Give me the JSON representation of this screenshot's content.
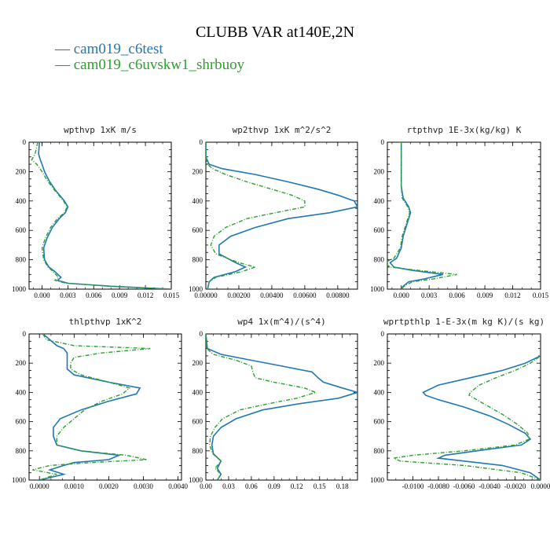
{
  "title": "CLUBB VAR at140E,2N",
  "legend": [
    {
      "label": "cam019_c6test",
      "color": "#1f77b4"
    },
    {
      "label": "cam019_c6uvskw1_shrbuoy",
      "color": "#2ca02c"
    }
  ],
  "chart_data": [
    {
      "type": "line",
      "title": "wpthvp  1xK m/s",
      "xlim": [
        -0.0015,
        0.015
      ],
      "ylim": [
        1000,
        0
      ],
      "xticks": [
        "0.000",
        "0.003",
        "0.006",
        "0.009",
        "0.012",
        "0.015"
      ],
      "xtick_values": [
        0,
        0.003,
        0.006,
        0.009,
        0.012,
        0.015
      ],
      "yticks": [
        "0",
        "200",
        "400",
        "600",
        "800",
        "1000"
      ],
      "ytick_values": [
        0,
        200,
        400,
        600,
        800,
        1000
      ],
      "series": [
        {
          "name": "cam019_c6test",
          "y": [
            0,
            80,
            120,
            150,
            200,
            260,
            330,
            400,
            440,
            480,
            520,
            580,
            650,
            720,
            800,
            850,
            880,
            920,
            940,
            960,
            980,
            1000
          ],
          "x": [
            -0.0003,
            -0.0004,
            -0.0002,
            0.0,
            0.0003,
            0.0008,
            0.0016,
            0.0026,
            0.003,
            0.0027,
            0.002,
            0.0012,
            0.0006,
            0.0002,
            0.0003,
            0.0008,
            0.0015,
            0.0022,
            0.0018,
            0.003,
            0.008,
            0.015
          ]
        },
        {
          "name": "cam019_c6uvskw1_shrbuoy",
          "y": [
            0,
            80,
            120,
            150,
            200,
            260,
            330,
            400,
            440,
            480,
            520,
            580,
            650,
            720,
            800,
            850,
            880,
            920,
            940,
            960,
            980,
            1000
          ],
          "x": [
            -0.0005,
            -0.0008,
            -0.0012,
            -0.0006,
            0.0,
            0.0006,
            0.0015,
            0.0025,
            0.0029,
            0.0026,
            0.0018,
            0.001,
            0.0004,
            0.0,
            0.0002,
            0.0007,
            0.0013,
            0.0019,
            0.0015,
            0.0028,
            0.008,
            0.015
          ]
        }
      ]
    },
    {
      "type": "line",
      "title": "wp2thvp  1xK m^2/s^2",
      "xlim": [
        0,
        0.0092
      ],
      "ylim": [
        1000,
        0
      ],
      "xticks": [
        "0.00000",
        "0.00200",
        "0.00400",
        "0.00600",
        "0.00800"
      ],
      "xtick_values": [
        0,
        0.002,
        0.004,
        0.006,
        0.008
      ],
      "yticks": [
        "0",
        "200",
        "400",
        "600",
        "800",
        "1000"
      ],
      "ytick_values": [
        0,
        200,
        400,
        600,
        800,
        1000
      ],
      "series": [
        {
          "name": "cam019_c6test",
          "y": [
            0,
            100,
            150,
            180,
            220,
            270,
            320,
            360,
            400,
            440,
            480,
            520,
            580,
            640,
            700,
            760,
            820,
            850,
            880,
            920,
            950,
            1000
          ],
          "x": [
            0.0,
            0.0,
            0.0002,
            0.001,
            0.003,
            0.005,
            0.0068,
            0.008,
            0.009,
            0.0092,
            0.0075,
            0.005,
            0.003,
            0.0015,
            0.0008,
            0.0008,
            0.0018,
            0.0024,
            0.0018,
            0.0005,
            0.0002,
            0.0001
          ]
        },
        {
          "name": "cam019_c6uvskw1_shrbuoy",
          "y": [
            0,
            100,
            150,
            180,
            220,
            270,
            320,
            360,
            400,
            440,
            480,
            520,
            580,
            640,
            700,
            760,
            820,
            850,
            880,
            920,
            950,
            1000
          ],
          "x": [
            0.0,
            0.0,
            0.0001,
            0.0004,
            0.0012,
            0.0025,
            0.004,
            0.0052,
            0.006,
            0.006,
            0.0042,
            0.0025,
            0.0012,
            0.0005,
            0.0003,
            0.0006,
            0.002,
            0.003,
            0.0022,
            0.0006,
            0.0002,
            0.0001
          ]
        }
      ]
    },
    {
      "type": "line",
      "title": "rtpthvp  1E-3x(kg/kg) K",
      "xlim": [
        -0.0015,
        0.015
      ],
      "ylim": [
        1000,
        0
      ],
      "xticks": [
        "0.000",
        "0.003",
        "0.006",
        "0.009",
        "0.012",
        "0.015"
      ],
      "xtick_values": [
        0,
        0.003,
        0.006,
        0.009,
        0.012,
        0.015
      ],
      "yticks": [
        "0",
        "200",
        "400",
        "600",
        "800",
        "1000"
      ],
      "ytick_values": [
        0,
        200,
        400,
        600,
        800,
        1000
      ],
      "series": [
        {
          "name": "cam019_c6test",
          "y": [
            0,
            100,
            200,
            300,
            380,
            440,
            480,
            560,
            640,
            720,
            790,
            820,
            850,
            870,
            900,
            930,
            950,
            980,
            1000
          ],
          "x": [
            0.0,
            0.0,
            0.0,
            0.0,
            0.0002,
            0.0008,
            0.001,
            0.0006,
            0.0002,
            0.0,
            -0.0005,
            -0.0012,
            -0.0008,
            0.001,
            0.0045,
            0.0025,
            0.0008,
            0.0002,
            0.0
          ]
        },
        {
          "name": "cam019_c6uvskw1_shrbuoy",
          "y": [
            0,
            100,
            200,
            300,
            380,
            440,
            480,
            560,
            640,
            720,
            790,
            820,
            850,
            870,
            900,
            930,
            950,
            980,
            1000
          ],
          "x": [
            0.0,
            0.0,
            0.0,
            0.0,
            0.0001,
            0.0007,
            0.0009,
            0.0005,
            0.0001,
            -0.0001,
            -0.0008,
            -0.0018,
            -0.0012,
            0.0015,
            0.006,
            0.0035,
            0.0012,
            0.0003,
            0.0
          ]
        }
      ]
    },
    {
      "type": "line",
      "title": "thlpthvp  1xK^2",
      "xlim": [
        -0.0003,
        0.0041
      ],
      "ylim": [
        1000,
        0
      ],
      "xticks": [
        "0.0000",
        "0.0010",
        "0.0020",
        "0.0030",
        "0.0040"
      ],
      "xtick_values": [
        0,
        0.001,
        0.002,
        0.003,
        0.004
      ],
      "yticks": [
        "0",
        "200",
        "400",
        "600",
        "800",
        "1000"
      ],
      "ytick_values": [
        0,
        200,
        400,
        600,
        800,
        1000
      ],
      "series": [
        {
          "name": "cam019_c6test",
          "y": [
            0,
            40,
            80,
            100,
            130,
            160,
            200,
            240,
            280,
            330,
            370,
            410,
            460,
            520,
            580,
            640,
            700,
            760,
            800,
            830,
            860,
            880,
            900,
            930,
            960,
            1000
          ],
          "x": [
            0.0001,
            0.0003,
            0.0005,
            0.0007,
            0.0008,
            0.0008,
            0.0008,
            0.0008,
            0.001,
            0.002,
            0.0029,
            0.0028,
            0.002,
            0.0012,
            0.0006,
            0.0004,
            0.0004,
            0.0005,
            0.0012,
            0.0023,
            0.002,
            0.001,
            0.0007,
            0.0003,
            0.0007,
            0.0
          ]
        },
        {
          "name": "cam019_c6uvskw1_shrbuoy",
          "y": [
            0,
            40,
            80,
            100,
            130,
            160,
            200,
            240,
            280,
            330,
            370,
            410,
            460,
            520,
            580,
            640,
            700,
            760,
            800,
            830,
            860,
            880,
            900,
            930,
            960,
            1000
          ],
          "x": [
            0.0001,
            0.0002,
            0.001,
            0.0032,
            0.0018,
            0.001,
            0.0009,
            0.0009,
            0.0012,
            0.002,
            0.0026,
            0.0024,
            0.0018,
            0.0013,
            0.001,
            0.0007,
            0.0005,
            0.0005,
            0.0012,
            0.0025,
            0.0031,
            0.0015,
            0.0003,
            -0.0002,
            0.0005,
            0.0
          ]
        }
      ]
    },
    {
      "type": "line",
      "title": "wp4  1x(m^4)/(s^4)",
      "xlim": [
        0,
        0.2
      ],
      "ylim": [
        1000,
        0
      ],
      "xticks": [
        "0.00",
        "0.03",
        "0.06",
        "0.09",
        "0.12",
        "0.15",
        "0.18"
      ],
      "xtick_values": [
        0,
        0.03,
        0.06,
        0.09,
        0.12,
        0.15,
        0.18
      ],
      "yticks": [
        "0",
        "200",
        "400",
        "600",
        "800",
        "1000"
      ],
      "ytick_values": [
        0,
        200,
        400,
        600,
        800,
        1000
      ],
      "series": [
        {
          "name": "cam019_c6test",
          "y": [
            0,
            100,
            140,
            180,
            220,
            260,
            300,
            330,
            370,
            400,
            440,
            480,
            520,
            580,
            640,
            700,
            760,
            820,
            870,
            920,
            960,
            1000
          ],
          "x": [
            0.0,
            0.002,
            0.02,
            0.06,
            0.1,
            0.14,
            0.148,
            0.155,
            0.18,
            0.2,
            0.175,
            0.12,
            0.075,
            0.04,
            0.02,
            0.01,
            0.008,
            0.01,
            0.02,
            0.015,
            0.02,
            0.015
          ]
        },
        {
          "name": "cam019_c6uvskw1_shrbuoy",
          "y": [
            0,
            100,
            140,
            180,
            220,
            260,
            300,
            330,
            370,
            400,
            440,
            480,
            520,
            580,
            640,
            700,
            760,
            820,
            870,
            920,
            960,
            1000
          ],
          "x": [
            0.0,
            0.001,
            0.01,
            0.04,
            0.06,
            0.062,
            0.065,
            0.09,
            0.13,
            0.145,
            0.12,
            0.08,
            0.045,
            0.022,
            0.012,
            0.006,
            0.005,
            0.009,
            0.02,
            0.012,
            0.02,
            0.015
          ]
        }
      ]
    },
    {
      "type": "line",
      "title": "wprtpthlp  1-E-3x(m kg K)/(s kg)",
      "xlim": [
        -0.012,
        0
      ],
      "ylim": [
        1000,
        0
      ],
      "xticks": [
        "-0.0100",
        "-0.0080",
        "-0.0060",
        "-0.0040",
        "-0.0020",
        "0.0000"
      ],
      "xtick_values": [
        -0.01,
        -0.008,
        -0.006,
        -0.004,
        -0.002,
        0
      ],
      "yticks": [
        "0",
        "200",
        "400",
        "600",
        "800",
        "1000"
      ],
      "ytick_values": [
        0,
        200,
        400,
        600,
        800,
        1000
      ],
      "series": [
        {
          "name": "cam019_c6test",
          "y": [
            0,
            150,
            200,
            250,
            300,
            350,
            400,
            420,
            450,
            500,
            560,
            620,
            680,
            720,
            760,
            800,
            830,
            850,
            870,
            900,
            950,
            1000
          ],
          "x": [
            0.0,
            0.0,
            -0.0012,
            -0.003,
            -0.0055,
            -0.008,
            -0.0092,
            -0.009,
            -0.008,
            -0.006,
            -0.004,
            -0.0025,
            -0.0012,
            -0.0008,
            -0.0015,
            -0.005,
            -0.0075,
            -0.008,
            -0.006,
            -0.003,
            -0.0008,
            0.0
          ]
        },
        {
          "name": "cam019_c6uvskw1_shrbuoy",
          "y": [
            0,
            150,
            200,
            250,
            300,
            350,
            400,
            420,
            450,
            500,
            560,
            620,
            680,
            720,
            760,
            800,
            830,
            850,
            870,
            900,
            950,
            1000
          ],
          "x": [
            0.0,
            0.0,
            -0.0008,
            -0.002,
            -0.0035,
            -0.0048,
            -0.0055,
            -0.0056,
            -0.005,
            -0.004,
            -0.0028,
            -0.0018,
            -0.001,
            -0.0009,
            -0.002,
            -0.006,
            -0.01,
            -0.0115,
            -0.011,
            -0.006,
            -0.0015,
            0.0
          ]
        }
      ]
    }
  ]
}
